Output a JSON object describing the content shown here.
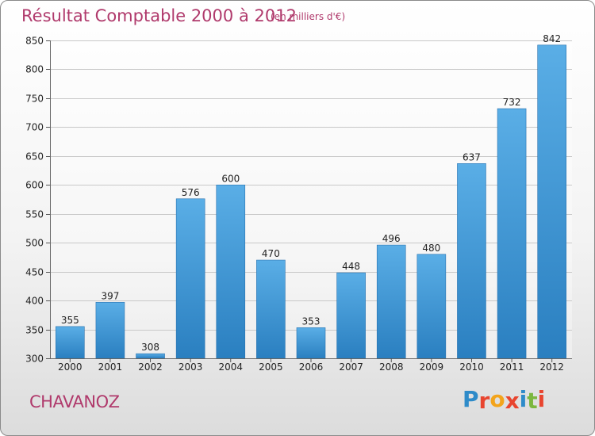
{
  "chart_data": {
    "type": "bar",
    "title": "Résultat Comptable 2000 à 2012",
    "subtitle": "(en milliers d'€)",
    "categories": [
      "2000",
      "2001",
      "2002",
      "2003",
      "2004",
      "2005",
      "2006",
      "2007",
      "2008",
      "2009",
      "2010",
      "2011",
      "2012"
    ],
    "values": [
      355,
      397,
      308,
      576,
      600,
      470,
      353,
      448,
      496,
      480,
      637,
      732,
      842
    ],
    "ylim": [
      300,
      850
    ],
    "yticks": [
      300,
      350,
      400,
      450,
      500,
      550,
      600,
      650,
      700,
      750,
      800,
      850
    ],
    "xlabel": "",
    "ylabel": "",
    "grid": true
  },
  "commune": "CHAVANOZ",
  "brand": {
    "letters": [
      "P",
      "r",
      "o",
      "x",
      "i",
      "t",
      "i"
    ],
    "colors": [
      "#2e8bc9",
      "#e8452f",
      "#f3a41b",
      "#e8452f",
      "#2e8bc9",
      "#7cb73f",
      "#e8452f"
    ]
  },
  "colors": {
    "accent": "#b03a6c",
    "bar_top": "#5aaee6",
    "bar_bottom": "#2a7fc0"
  }
}
